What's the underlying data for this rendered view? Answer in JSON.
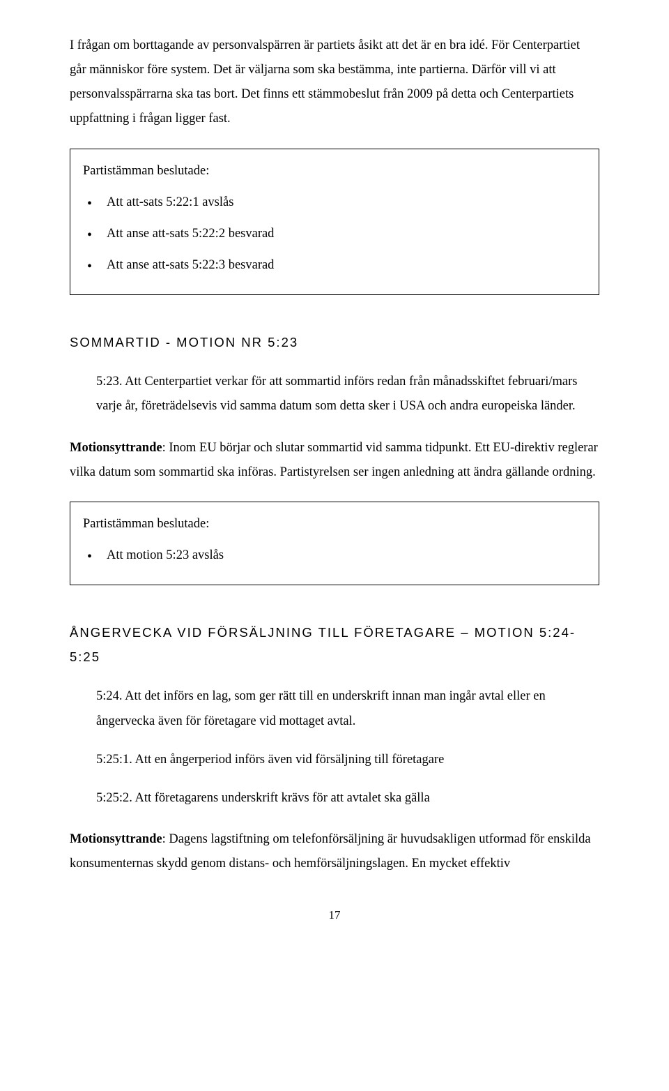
{
  "intro": {
    "p1": "I frågan om borttagande av personvalspärren är partiets åsikt att det är en bra idé. För Centerpartiet går människor före system. Det är väljarna som ska bestämma, inte partierna. Därför vill vi att personvalsspärrarna ska tas bort. Det finns ett stämmobeslut från 2009 på detta och Centerpartiets uppfattning i frågan ligger fast."
  },
  "decision1": {
    "title": "Partistämman beslutade:",
    "items": [
      "Att att-sats 5:22:1 avslås",
      "Att anse att-sats 5:22:2 besvarad",
      "Att anse att-sats 5:22:3 besvarad"
    ]
  },
  "section_sommartid": {
    "heading": "SOMMARTID - MOTION NR 5:23",
    "motion_para": "5:23. Att Centerpartiet verkar för att sommartid införs redan från månadsskiftet februari/mars varje år, företrädelsevis vid samma datum som detta sker i USA och andra europeiska länder.",
    "yttrande_label": "Motionsyttrande",
    "yttrande_text": ": Inom EU börjar och slutar sommartid vid samma tidpunkt. Ett EU-direktiv reglerar vilka datum som sommartid ska införas. Partistyrelsen ser ingen anledning att ändra gällande ordning."
  },
  "decision2": {
    "title": "Partistämman beslutade:",
    "items": [
      "Att motion 5:23 avslås"
    ]
  },
  "section_angervecka": {
    "heading": "ÅNGERVECKA VID FÖRSÄLJNING TILL FÖRETAGARE – MOTION 5:24-5:25",
    "motion_524": "5:24. Att det införs en lag, som ger rätt till en underskrift innan man ingår avtal eller en ångervecka även för företagare vid mottaget avtal.",
    "motion_5251": "5:25:1. Att en ångerperiod införs även vid försäljning till företagare",
    "motion_5252": "5:25:2. Att företagarens underskrift krävs för att avtalet ska gälla",
    "yttrande_label": "Motionsyttrande",
    "yttrande_text": ": Dagens lagstiftning om telefonförsäljning är huvudsakligen utformad för enskilda konsumenternas skydd genom distans- och hemförsäljningslagen. En mycket effektiv"
  },
  "page_number": "17"
}
